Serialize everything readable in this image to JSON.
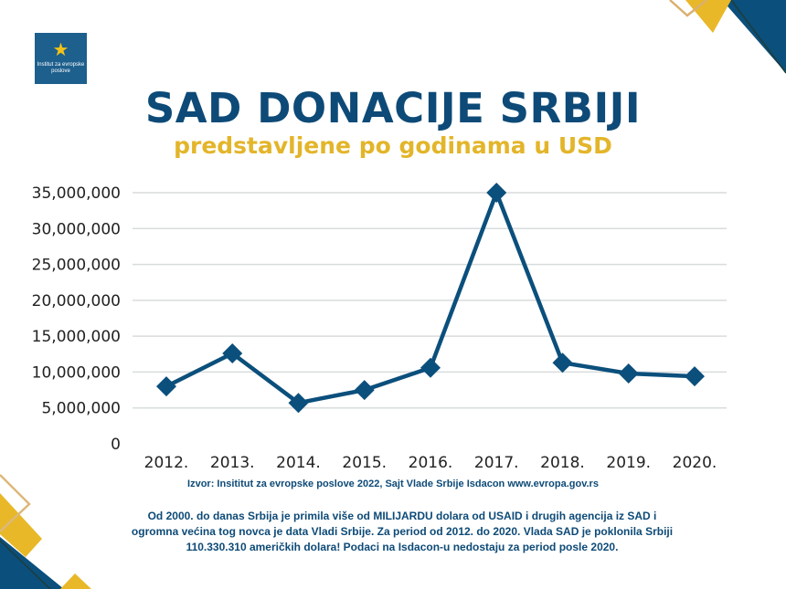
{
  "logo": {
    "text": "Institut za evropske poslove"
  },
  "title": "SAD DONACIJE SRBIJI",
  "subtitle": "predstavljene po godinama u USD",
  "chart_data": {
    "type": "line",
    "title": "SAD DONACIJE SRBIJI",
    "subtitle": "predstavljene po godinama u USD",
    "categories": [
      "2012.",
      "2013.",
      "2014.",
      "2015.",
      "2016.",
      "2017.",
      "2018.",
      "2019.",
      "2020."
    ],
    "values": [
      8000000,
      12600000,
      5700000,
      7500000,
      10600000,
      35000000,
      11300000,
      9800000,
      9400000
    ],
    "ylim": [
      0,
      35000000
    ],
    "yticks": [
      0,
      5000000,
      10000000,
      15000000,
      20000000,
      25000000,
      30000000,
      35000000
    ],
    "ytick_labels": [
      "0",
      "5,000,000",
      "10,000,000",
      "15,000,000",
      "20,000,000",
      "25,000,000",
      "30,000,000",
      "35,000,000"
    ],
    "grid": true,
    "marker": "diamond",
    "line_color": "#0b4f7c"
  },
  "source": "Izvor: Insititut za evropske poslove 2022, Sajt Vlade Srbije Isdacon www.evropa.gov.rs",
  "note": "Od 2000. do danas Srbija je primila više od MILIJARDU dolara od USAID i drugih agencija iz SAD i ogromna većina tog novca je data Vladi Srbije. Za period od 2012. do 2020. Vlada SAD je poklonila Srbiji 110.330.310 američkih dolara! Podaci na Isdacon-u nedostaju za period posle 2020.",
  "colors": {
    "navy": "#0b4f7c",
    "gold": "#e8b829"
  }
}
